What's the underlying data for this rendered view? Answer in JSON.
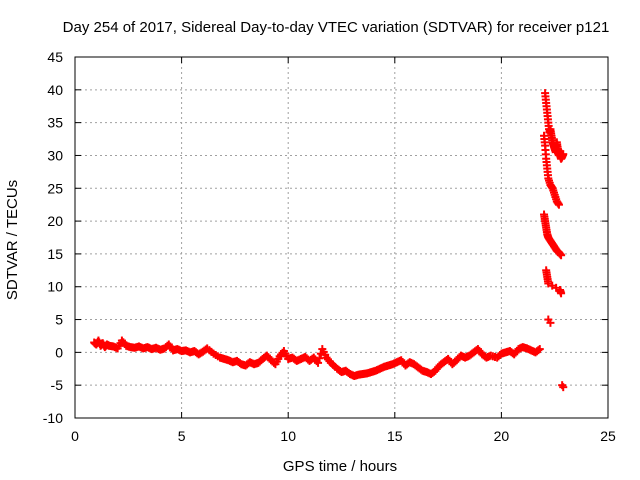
{
  "chart_data": {
    "type": "scatter",
    "title": "Day 254 of 2017, Sidereal Day-to-day VTEC variation (SDTVAR) for receiver p121",
    "xlabel": "GPS time / hours",
    "ylabel": "SDTVAR / TECUs",
    "xlim": [
      0,
      25
    ],
    "ylim": [
      -10,
      45
    ],
    "xticks": [
      0,
      5,
      10,
      15,
      20,
      25
    ],
    "yticks": [
      -10,
      -5,
      0,
      5,
      10,
      15,
      20,
      25,
      30,
      35,
      40,
      45
    ],
    "grid": true,
    "marker": "+",
    "color": "#ff0000",
    "x": [
      0.9,
      1.0,
      1.1,
      1.2,
      1.3,
      1.4,
      1.5,
      1.6,
      1.8,
      2.0,
      2.2,
      2.4,
      2.6,
      2.8,
      3.0,
      3.2,
      3.4,
      3.6,
      3.8,
      4.0,
      4.2,
      4.4,
      4.6,
      4.8,
      5.0,
      5.2,
      5.4,
      5.6,
      5.8,
      6.0,
      6.2,
      6.5,
      6.8,
      7.0,
      7.2,
      7.4,
      7.6,
      7.8,
      8.0,
      8.2,
      8.4,
      8.6,
      8.8,
      9.0,
      9.2,
      9.4,
      9.6,
      9.8,
      10.0,
      10.2,
      10.4,
      10.6,
      10.8,
      11.0,
      11.2,
      11.4,
      11.6,
      11.8,
      12.0,
      12.3,
      12.5,
      12.7,
      12.9,
      13.1,
      13.3,
      13.5,
      13.7,
      13.9,
      14.1,
      14.3,
      14.5,
      14.7,
      14.9,
      15.1,
      15.3,
      15.5,
      15.7,
      15.9,
      16.1,
      16.3,
      16.5,
      16.7,
      16.9,
      17.1,
      17.3,
      17.5,
      17.7,
      17.9,
      18.1,
      18.3,
      18.5,
      18.7,
      18.9,
      19.1,
      19.3,
      19.5,
      19.8,
      20.0,
      20.2,
      20.4,
      20.6,
      20.8,
      21.0,
      21.2,
      21.4,
      21.6,
      21.8,
      22.05,
      22.1,
      22.15,
      22.2,
      22.25,
      22.3,
      22.35,
      22.4,
      22.45,
      22.5,
      22.55,
      22.6,
      22.65,
      22.7,
      22.75,
      22.8,
      22.85,
      22.9,
      22.0,
      22.05,
      22.1,
      22.15,
      22.2,
      22.3,
      22.4,
      22.5,
      22.6,
      22.7,
      22.0,
      22.05,
      22.1,
      22.15,
      22.2,
      22.3,
      22.4,
      22.5,
      22.6,
      22.7,
      22.8,
      22.1,
      22.15,
      22.2,
      22.75,
      22.8
    ],
    "y": [
      1.5,
      1.2,
      1.8,
      1.0,
      1.4,
      0.8,
      1.2,
      1.0,
      0.9,
      0.6,
      1.8,
      1.0,
      0.8,
      0.7,
      0.9,
      0.6,
      0.8,
      0.5,
      0.7,
      0.4,
      0.6,
      1.2,
      0.3,
      0.5,
      0.2,
      0.3,
      0.0,
      0.2,
      -0.3,
      0.1,
      0.6,
      -0.2,
      -0.8,
      -1.0,
      -1.2,
      -1.5,
      -1.3,
      -1.8,
      -2.0,
      -1.5,
      -1.8,
      -1.6,
      -1.0,
      -0.5,
      -1.2,
      -1.8,
      -0.6,
      0.2,
      -1.0,
      -0.8,
      -1.3,
      -1.0,
      -0.7,
      -1.3,
      -0.8,
      -1.6,
      0.5,
      -0.8,
      -1.6,
      -2.5,
      -3.0,
      -2.8,
      -3.3,
      -3.6,
      -3.4,
      -3.3,
      -3.2,
      -3.0,
      -2.8,
      -2.5,
      -2.2,
      -2.0,
      -1.8,
      -1.5,
      -1.2,
      -2.0,
      -1.5,
      -1.8,
      -2.3,
      -2.8,
      -3.0,
      -3.3,
      -2.8,
      -2.0,
      -1.5,
      -1.0,
      -1.8,
      -1.2,
      -0.5,
      -0.8,
      -0.5,
      0.0,
      0.5,
      -0.3,
      -0.8,
      -0.5,
      -0.8,
      -0.2,
      0.0,
      0.2,
      -0.3,
      0.5,
      0.8,
      0.6,
      0.3,
      0.0,
      0.5,
      39.5,
      38.0,
      36.5,
      35.0,
      33.5,
      34.0,
      33.0,
      32.0,
      31.5,
      31.0,
      30.5,
      32.0,
      31.0,
      30.5,
      30.0,
      29.5,
      29.8,
      30.2,
      33.0,
      31.5,
      29.5,
      28.0,
      26.5,
      25.5,
      25.0,
      24.0,
      23.0,
      22.5,
      21.0,
      20.0,
      19.0,
      18.0,
      17.5,
      17.0,
      16.5,
      16.0,
      15.5,
      15.2,
      14.8,
      12.5,
      11.5,
      10.5,
      9.5,
      9.0
    ],
    "extra_points": {
      "x": [
        22.2,
        22.3,
        22.85,
        22.9
      ],
      "y": [
        5.0,
        4.5,
        -5.0,
        -5.3
      ]
    }
  }
}
